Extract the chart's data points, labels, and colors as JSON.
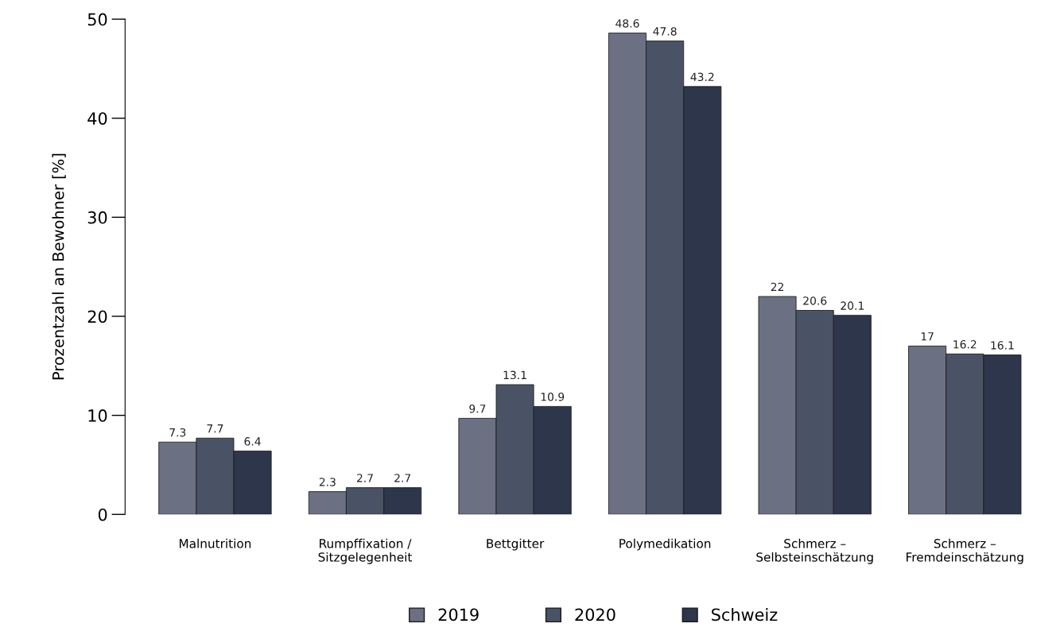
{
  "chart_data": {
    "type": "bar",
    "ylabel": "Prozentzahl an Bewohner [%]",
    "categories": [
      "Malnutrition",
      "Rumpffixation /\nSitzgelegenheit",
      "Bettgitter",
      "Polymedikation",
      "Schmerz –\nSelbsteinschätzung",
      "Schmerz –\nFremdeinschätzung"
    ],
    "series": [
      {
        "name": "2019",
        "color": "#6b7082",
        "values": [
          7.3,
          2.3,
          9.7,
          48.6,
          22,
          17
        ]
      },
      {
        "name": "2020",
        "color": "#4a5366",
        "values": [
          7.7,
          2.7,
          13.1,
          47.8,
          20.6,
          16.2
        ]
      },
      {
        "name": "Schweiz",
        "color": "#2d364b",
        "values": [
          6.4,
          2.7,
          10.9,
          43.2,
          20.1,
          16.1
        ]
      }
    ],
    "ylim": [
      0,
      50
    ],
    "yticks": [
      0,
      10,
      20,
      30,
      40,
      50
    ],
    "grid": false,
    "legend": "bottom",
    "data_labels": true
  }
}
